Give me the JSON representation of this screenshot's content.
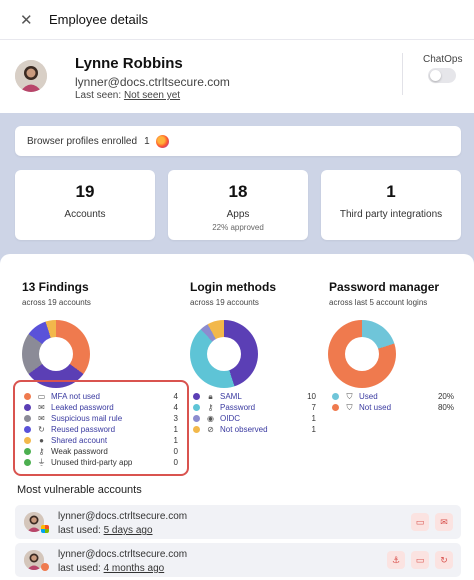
{
  "header": {
    "close_icon": "close-icon",
    "title": "Employee details"
  },
  "profile": {
    "name": "Lynne Robbins",
    "email": "lynner@docs.ctrltsecure.com",
    "last_seen_label": "Last seen:",
    "last_seen_value": "Not seen yet",
    "chatops_label": "ChatOps",
    "chatops_enabled": false
  },
  "browser": {
    "label": "Browser profiles enrolled",
    "count": "1",
    "icon": "firefox-icon"
  },
  "stats": [
    {
      "value": "19",
      "label": "Accounts",
      "sub": ""
    },
    {
      "value": "18",
      "label": "Apps",
      "sub": "22% approved"
    },
    {
      "value": "1",
      "label": "Third party integrations",
      "sub": ""
    }
  ],
  "findings": {
    "title": "13 Findings",
    "subtitle": "across 19 accounts",
    "items": [
      {
        "label": "MFA not used",
        "value": "4",
        "color": "#ef7a4e",
        "icon": "devices-icon"
      },
      {
        "label": "Leaked password",
        "value": "4",
        "color": "#5b3fb5",
        "icon": "mail-icon"
      },
      {
        "label": "Suspicious mail rule",
        "value": "3",
        "color": "#8b8b97",
        "icon": "envelope-icon"
      },
      {
        "label": "Reused password",
        "value": "1",
        "color": "#5a52d9",
        "icon": "refresh-icon"
      },
      {
        "label": "Shared account",
        "value": "1",
        "color": "#f2b84b",
        "icon": "users-icon"
      },
      {
        "label": "Weak password",
        "value": "0",
        "color": "#4caf50",
        "icon": "key-icon"
      },
      {
        "label": "Unused third-party app",
        "value": "0",
        "color": "#4caf50",
        "icon": "plug-icon"
      }
    ]
  },
  "login_methods": {
    "title": "Login methods",
    "subtitle": "across 19 accounts",
    "items": [
      {
        "label": "SAML",
        "value": "10",
        "color": "#5b3fb5",
        "icon": "lock-icon"
      },
      {
        "label": "Password",
        "value": "7",
        "color": "#5ec4d6",
        "icon": "key-icon"
      },
      {
        "label": "OIDC",
        "value": "1",
        "color": "#8c8ccf",
        "icon": "id-icon"
      },
      {
        "label": "Not observed",
        "value": "1",
        "color": "#f2b84b",
        "icon": "eye-off-icon"
      }
    ]
  },
  "password_manager": {
    "title": "Password manager",
    "subtitle": "across last 5 account logins",
    "items": [
      {
        "label": "Used",
        "value": "20%",
        "color": "#6fc5d9",
        "icon": "shield-icon"
      },
      {
        "label": "Not used",
        "value": "80%",
        "color": "#ef7a4e",
        "icon": "shield-off-icon"
      }
    ]
  },
  "vulnerable": {
    "title": "Most vulnerable accounts",
    "accounts": [
      {
        "email": "lynner@docs.ctrltsecure.com",
        "used_label": "last used:",
        "used_value": "5 days ago"
      },
      {
        "email": "lynner@docs.ctrltsecure.com",
        "used_label": "last used:",
        "used_value": "4 months ago"
      }
    ]
  }
}
